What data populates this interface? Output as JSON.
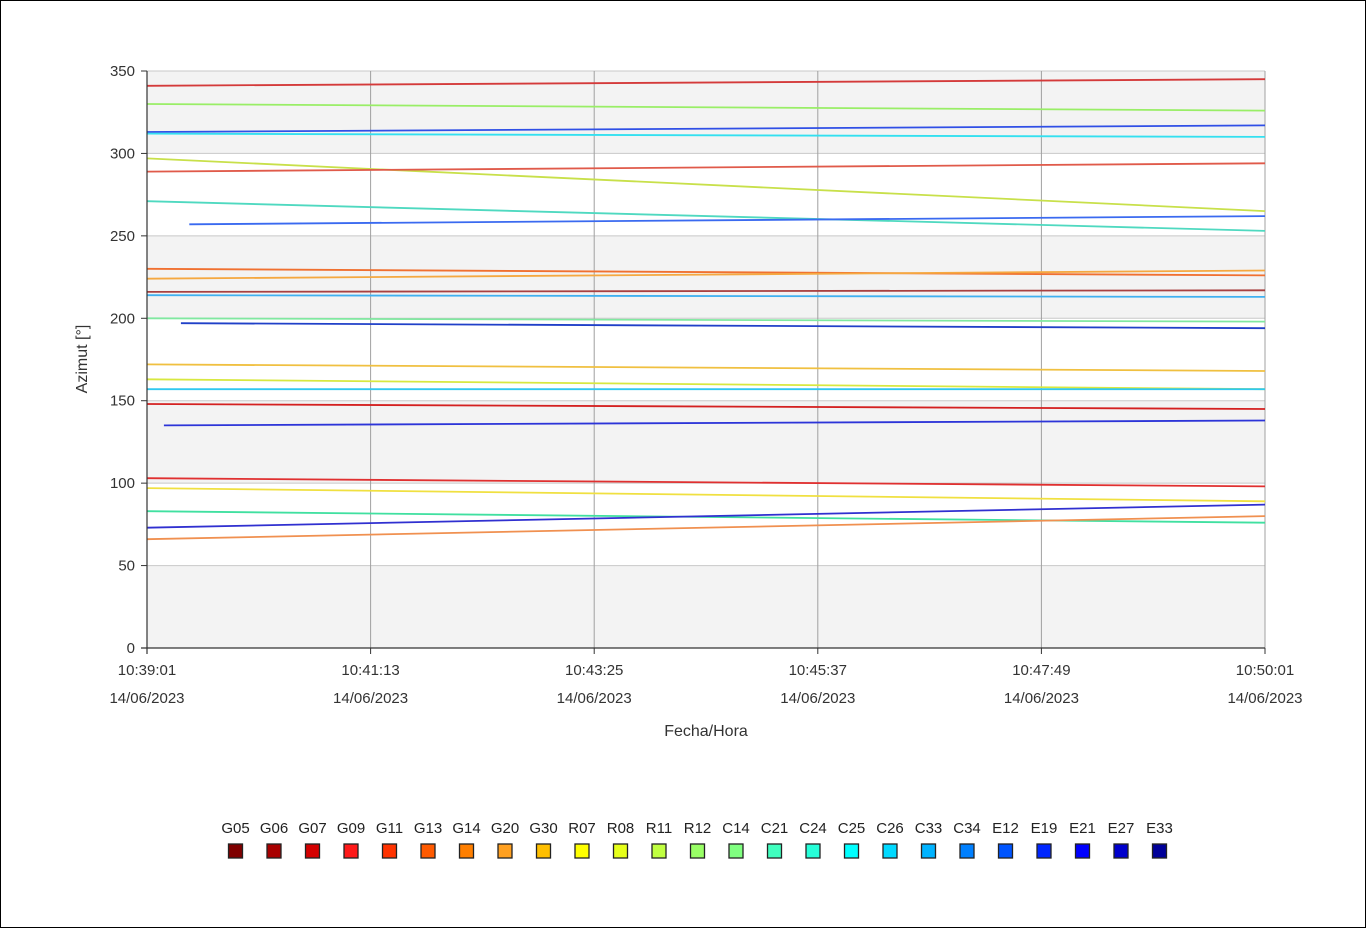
{
  "chart_data": {
    "type": "line",
    "title": "",
    "xlabel": "Fecha/Hora",
    "ylabel": "Azimut [°]",
    "ylim": [
      0,
      350
    ],
    "yticks": [
      0,
      50,
      100,
      150,
      200,
      250,
      300,
      350
    ],
    "xlim_seconds_span": 660,
    "xticks": [
      {
        "time": "10:39:01",
        "date": "14/06/2023"
      },
      {
        "time": "10:41:13",
        "date": "14/06/2023"
      },
      {
        "time": "10:43:25",
        "date": "14/06/2023"
      },
      {
        "time": "10:45:37",
        "date": "14/06/2023"
      },
      {
        "time": "10:47:49",
        "date": "14/06/2023"
      },
      {
        "time": "10:50:01",
        "date": "14/06/2023"
      }
    ],
    "grid": true,
    "legend_position": "bottom",
    "legend": [
      {
        "name": "G05",
        "color": "#7f0000"
      },
      {
        "name": "G06",
        "color": "#a80000"
      },
      {
        "name": "G07",
        "color": "#d40000"
      },
      {
        "name": "G09",
        "color": "#ff1a1a"
      },
      {
        "name": "G11",
        "color": "#ff3300"
      },
      {
        "name": "G13",
        "color": "#ff5a00"
      },
      {
        "name": "G14",
        "color": "#ff7f00"
      },
      {
        "name": "G20",
        "color": "#ffa020"
      },
      {
        "name": "G30",
        "color": "#ffbf00"
      },
      {
        "name": "R07",
        "color": "#ffff00"
      },
      {
        "name": "R08",
        "color": "#e6ff1a"
      },
      {
        "name": "R11",
        "color": "#c0ff40"
      },
      {
        "name": "R12",
        "color": "#99ff66"
      },
      {
        "name": "C14",
        "color": "#80ff80"
      },
      {
        "name": "C21",
        "color": "#40ffbf"
      },
      {
        "name": "C24",
        "color": "#26ffd9"
      },
      {
        "name": "C25",
        "color": "#00ffff"
      },
      {
        "name": "C26",
        "color": "#00d9ff"
      },
      {
        "name": "C33",
        "color": "#00b3ff"
      },
      {
        "name": "C34",
        "color": "#0080ff"
      },
      {
        "name": "E12",
        "color": "#0055ff"
      },
      {
        "name": "E19",
        "color": "#0026ff"
      },
      {
        "name": "E21",
        "color": "#0000ff"
      },
      {
        "name": "E27",
        "color": "#0000cc"
      },
      {
        "name": "E33",
        "color": "#000099"
      }
    ],
    "series": [
      {
        "values": [
          [
            0,
            341
          ],
          [
            660,
            345
          ]
        ],
        "color": "#d43a3a"
      },
      {
        "values": [
          [
            0,
            330
          ],
          [
            660,
            326
          ]
        ],
        "color": "#99ee66"
      },
      {
        "values": [
          [
            0,
            313
          ],
          [
            660,
            317
          ]
        ],
        "color": "#2f4fe6"
      },
      {
        "values": [
          [
            0,
            312
          ],
          [
            660,
            310
          ]
        ],
        "color": "#33e0f0"
      },
      {
        "values": [
          [
            0,
            297
          ],
          [
            660,
            265
          ]
        ],
        "color": "#c8e04a"
      },
      {
        "values": [
          [
            0,
            289
          ],
          [
            660,
            294
          ]
        ],
        "color": "#e05a4a"
      },
      {
        "values": [
          [
            0,
            271
          ],
          [
            660,
            253
          ]
        ],
        "color": "#4fd9c0"
      },
      {
        "values": [
          [
            25,
            257
          ],
          [
            660,
            262
          ]
        ],
        "color": "#3a6af0"
      },
      {
        "values": [
          [
            0,
            230
          ],
          [
            660,
            226
          ]
        ],
        "color": "#f07030"
      },
      {
        "values": [
          [
            0,
            224
          ],
          [
            660,
            229
          ]
        ],
        "color": "#f5a840"
      },
      {
        "values": [
          [
            0,
            216
          ],
          [
            660,
            217
          ]
        ],
        "color": "#a84040"
      },
      {
        "values": [
          [
            0,
            214
          ],
          [
            660,
            213
          ]
        ],
        "color": "#40b0f0"
      },
      {
        "values": [
          [
            0,
            200
          ],
          [
            660,
            198
          ]
        ],
        "color": "#80e8a0"
      },
      {
        "values": [
          [
            20,
            197
          ],
          [
            660,
            194
          ]
        ],
        "color": "#2040c8"
      },
      {
        "values": [
          [
            0,
            172
          ],
          [
            660,
            168
          ]
        ],
        "color": "#f0c040"
      },
      {
        "values": [
          [
            0,
            163
          ],
          [
            660,
            157
          ]
        ],
        "color": "#d8e840"
      },
      {
        "values": [
          [
            0,
            157
          ],
          [
            660,
            157
          ]
        ],
        "color": "#30c8f0"
      },
      {
        "values": [
          [
            0,
            148
          ],
          [
            660,
            145
          ]
        ],
        "color": "#d42020"
      },
      {
        "values": [
          [
            10,
            135
          ],
          [
            660,
            138
          ]
        ],
        "color": "#2c34d8"
      },
      {
        "values": [
          [
            0,
            103
          ],
          [
            660,
            98
          ]
        ],
        "color": "#e03030"
      },
      {
        "values": [
          [
            0,
            97
          ],
          [
            660,
            89
          ]
        ],
        "color": "#f0e040"
      },
      {
        "values": [
          [
            0,
            83
          ],
          [
            660,
            76
          ]
        ],
        "color": "#40e0a0"
      },
      {
        "values": [
          [
            0,
            73
          ],
          [
            660,
            87
          ]
        ],
        "color": "#3030d0"
      },
      {
        "values": [
          [
            0,
            66
          ],
          [
            660,
            80
          ]
        ],
        "color": "#f09050"
      }
    ]
  }
}
